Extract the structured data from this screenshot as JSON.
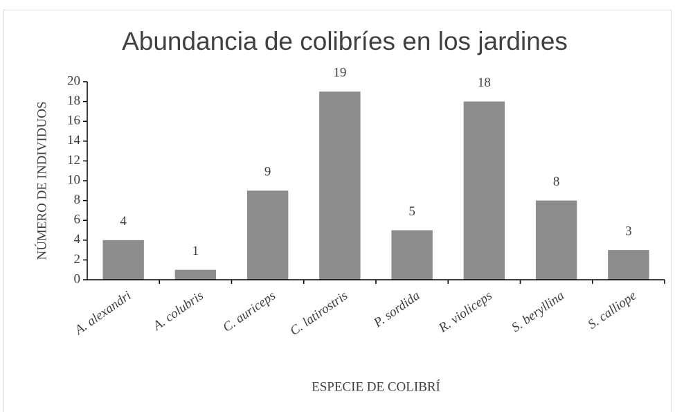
{
  "chart_data": {
    "type": "bar",
    "title": "Abundancia de colibríes en los jardines",
    "x_label": "ESPECIE DE COLIBRÍ",
    "y_label": "NÚMERO DE INDIVIDUOS",
    "categories": [
      "A. alexandri",
      "A. colubris",
      "C. auriceps",
      "C. latirostris",
      "P. sordida",
      "R. violiceps",
      "S. beryllina",
      "S. calliope"
    ],
    "values": [
      4,
      1,
      9,
      19,
      5,
      18,
      8,
      3
    ],
    "color": "#8c8c8c",
    "ylim": [
      0,
      20
    ],
    "yticks": [
      0,
      2,
      4,
      6,
      8,
      10,
      12,
      14,
      16,
      18,
      20
    ],
    "grid": false
  }
}
